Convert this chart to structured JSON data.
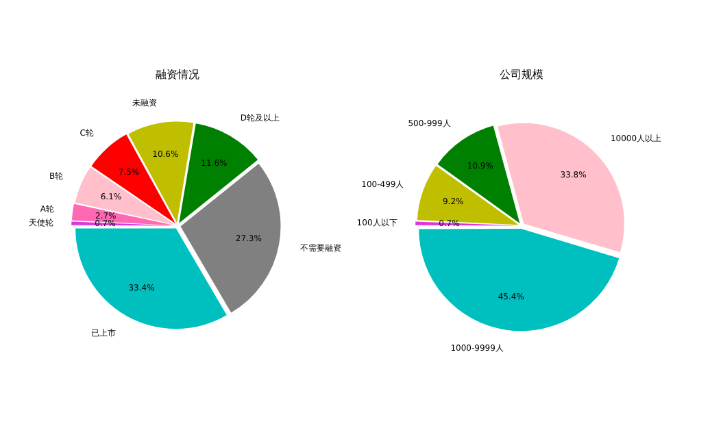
{
  "chart_data": [
    {
      "type": "pie",
      "title": "融资情况",
      "categories": [
        "天使轮",
        "A轮",
        "B轮",
        "C轮",
        "未融资",
        "D轮及以上",
        "不需要融资",
        "已上市"
      ],
      "values": [
        0.7,
        2.7,
        6.1,
        7.5,
        10.6,
        11.6,
        27.3,
        33.4
      ],
      "value_labels": [
        "0.7%",
        "2.7%",
        "6.1%",
        "7.5%",
        "10.6%",
        "11.6%",
        "27.3%",
        "33.4%"
      ],
      "colors": [
        "#e033e0",
        "#ff69b4",
        "#ffc0cb",
        "#ff0000",
        "#bfbf00",
        "#008000",
        "#808080",
        "#00bfbf"
      ],
      "legend": false
    },
    {
      "type": "pie",
      "title": "公司规模",
      "categories": [
        "100人以下",
        "100-499人",
        "500-999人",
        "10000人以上",
        "1000-9999人"
      ],
      "values": [
        0.7,
        9.2,
        10.9,
        33.8,
        45.4
      ],
      "value_labels": [
        "0.7%",
        "9.2%",
        "10.9%",
        "33.8%",
        "45.4%"
      ],
      "colors": [
        "#e033e0",
        "#bfbf00",
        "#008000",
        "#ffc0cb",
        "#00bfbf"
      ],
      "legend": false
    }
  ]
}
